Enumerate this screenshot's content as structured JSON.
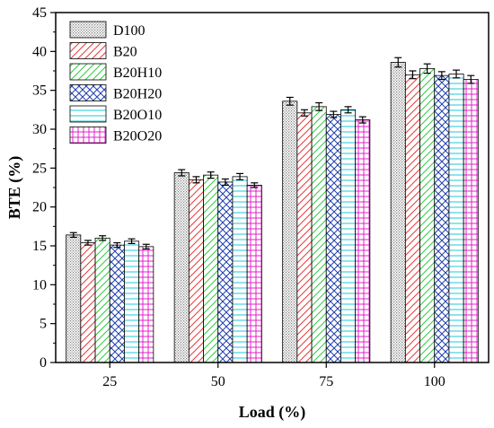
{
  "chart_data": {
    "type": "bar",
    "xlabel": "Load (%)",
    "ylabel": "BTE (%)",
    "ylim": [
      0,
      45
    ],
    "yticks": [
      0,
      5,
      10,
      15,
      20,
      25,
      30,
      35,
      40,
      45
    ],
    "categories": [
      "25",
      "50",
      "75",
      "100"
    ],
    "legend_position": "top-left",
    "series": [
      {
        "name": "D100",
        "values": [
          16.4,
          24.4,
          33.6,
          38.6
        ],
        "errors": [
          0.3,
          0.4,
          0.5,
          0.6
        ],
        "color": "#7f7f7f",
        "pattern": "dots"
      },
      {
        "name": "B20",
        "values": [
          15.4,
          23.5,
          32.1,
          37.0
        ],
        "errors": [
          0.3,
          0.4,
          0.4,
          0.5
        ],
        "color": "#e8393b",
        "pattern": "diagonal"
      },
      {
        "name": "B20H10",
        "values": [
          16.0,
          24.1,
          32.9,
          37.8
        ],
        "errors": [
          0.3,
          0.4,
          0.5,
          0.6
        ],
        "color": "#2ecc40",
        "pattern": "diagonal"
      },
      {
        "name": "B20H20",
        "values": [
          15.1,
          23.2,
          31.9,
          36.9
        ],
        "errors": [
          0.3,
          0.4,
          0.4,
          0.5
        ],
        "color": "#1f3fb0",
        "pattern": "crosshatch"
      },
      {
        "name": "B20O10",
        "values": [
          15.6,
          23.9,
          32.5,
          37.1
        ],
        "errors": [
          0.3,
          0.4,
          0.4,
          0.5
        ],
        "color": "#1ec8d8",
        "pattern": "horizontal"
      },
      {
        "name": "B20O20",
        "values": [
          14.9,
          22.8,
          31.2,
          36.4
        ],
        "errors": [
          0.3,
          0.3,
          0.4,
          0.5
        ],
        "color": "#e020c8",
        "pattern": "grid"
      }
    ]
  }
}
